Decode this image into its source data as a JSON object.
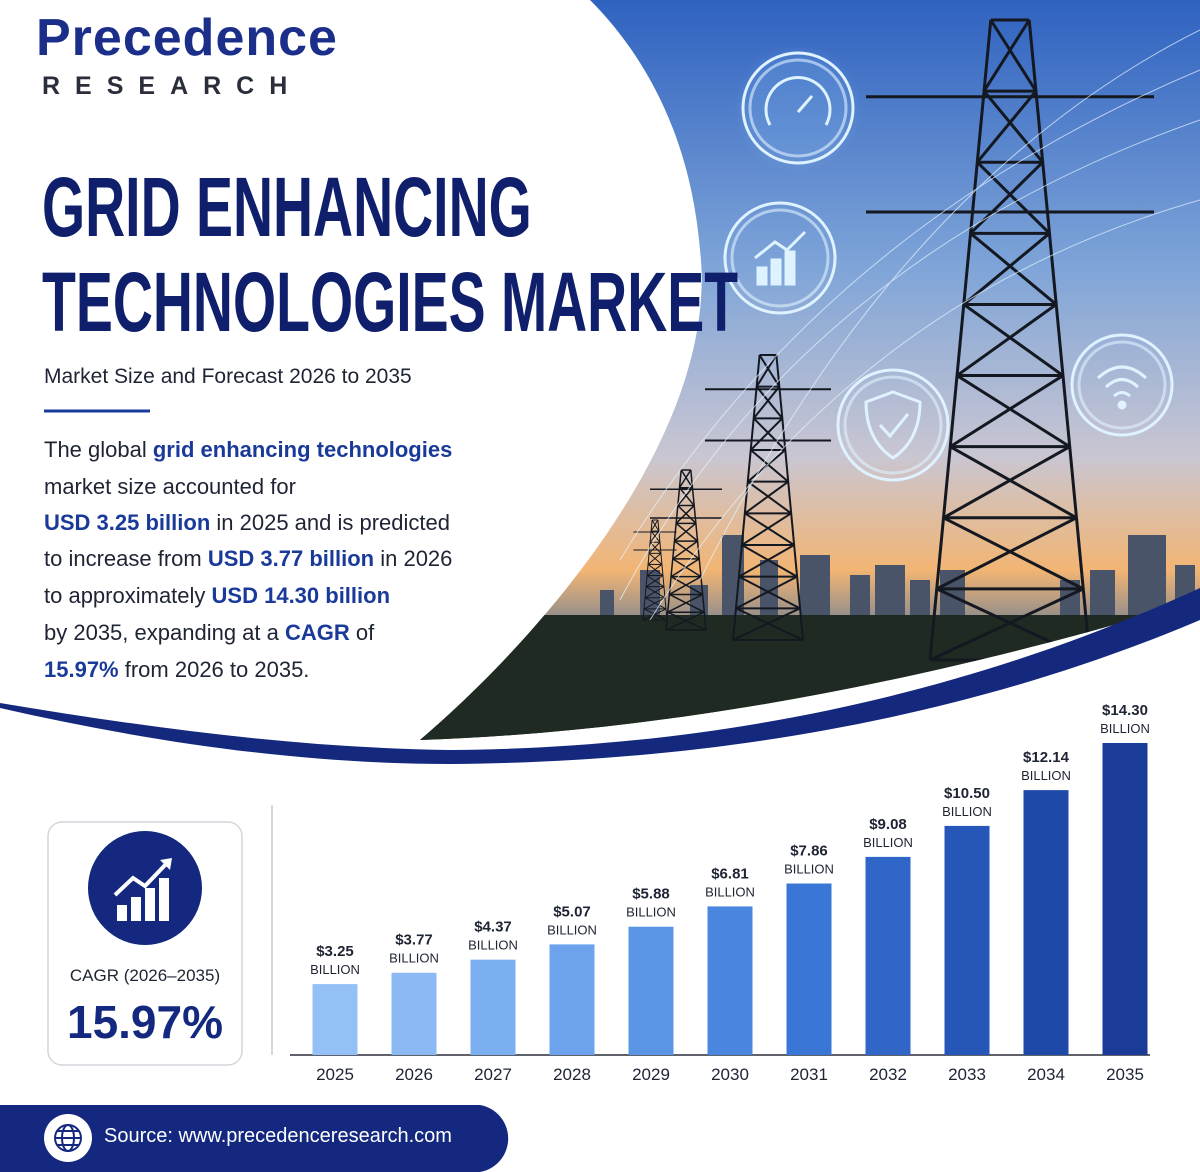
{
  "header": {
    "logo": "Precedence",
    "logo_sub": "RESEARCH",
    "title_lines": [
      "GRID ENHANCING",
      "TECHNOLOGIES MARKET"
    ],
    "subtitle": "Market Size and Forecast 2026 to 2035"
  },
  "description": {
    "lines": [
      [
        "The global ",
        "grid enhancing technologies"
      ],
      [
        "market size accounted for"
      ],
      [
        "USD 3.25 billion",
        " in 2025 and is predicted"
      ],
      [
        "to increase from ",
        "USD 3.77 billion",
        " in 2026"
      ],
      [
        "to approximately ",
        "USD 14.30 billion"
      ],
      [
        "by 2035, expanding at a ",
        "CAGR",
        " of"
      ],
      [
        "15.97%",
        " from 2026 to 2035."
      ]
    ]
  },
  "cagr": {
    "label": "CAGR (2026–2035)",
    "value": "15.97%"
  },
  "footer": {
    "source": "Source: www.precedenceresearch.com"
  },
  "chart_data": {
    "type": "bar",
    "categories": [
      "2025",
      "2026",
      "2027",
      "2028",
      "2029",
      "2030",
      "2031",
      "2032",
      "2033",
      "2034",
      "2035"
    ],
    "values": [
      3.25,
      3.77,
      4.37,
      5.07,
      5.88,
      6.81,
      7.86,
      9.08,
      10.5,
      12.14,
      14.3
    ],
    "value_labels": [
      "$3.25",
      "$3.77",
      "$4.37",
      "$5.07",
      "$5.88",
      "$6.81",
      "$7.86",
      "$9.08",
      "$10.50",
      "$12.14",
      "$14.30"
    ],
    "value_unit": "BILLION",
    "colors": [
      "#93c1f7",
      "#8bb9f4",
      "#7caff0",
      "#6ca3ec",
      "#5b95e6",
      "#4a86e0",
      "#3a76d6",
      "#2f66c8",
      "#2656b8",
      "#1f49a8",
      "#1a3c98"
    ]
  }
}
